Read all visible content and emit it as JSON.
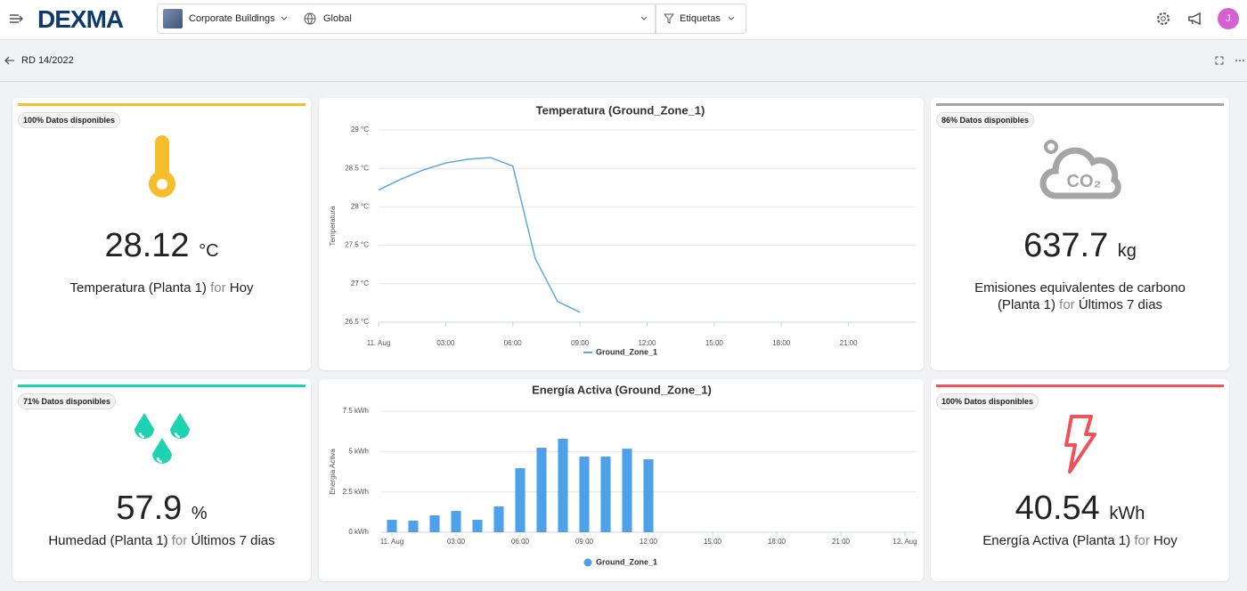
{
  "header": {
    "logo": "DEXMA",
    "building": "Corporate Buildings",
    "location": "Global",
    "tags": "Etiquetas",
    "avatar": "J"
  },
  "breadcrumb": {
    "title": "RD 14/2022"
  },
  "widgets": [
    {
      "availability": "100% Datos disponibles",
      "value": 28.12,
      "unit": "°C",
      "label": "Temperatura (Planta 1)",
      "for": "for",
      "period": "Hoy",
      "color": "#f7bd2b"
    },
    {
      "availability": "86% Datos disponibles",
      "value": 637.7,
      "unit": "kg",
      "label": "Emisiones equivalentes de carbono (Planta 1)",
      "for": "for",
      "period": "Últimos 7 dias",
      "color": "#a5a5a5",
      "icon_text": "CO₂"
    },
    {
      "availability": "71% Datos disponibles",
      "value": 57.9,
      "unit": "%",
      "label": "Humedad (Planta 1)",
      "for": "for",
      "period": "Últimos 7 dias",
      "color": "#1dd3b0"
    },
    {
      "availability": "100% Datos disponibles",
      "value": 40.54,
      "unit": "kWh",
      "label": "Energía Activa (Planta 1)",
      "for": "for",
      "period": "Hoy",
      "color": "#f0525a"
    }
  ],
  "chart_data": [
    {
      "type": "line",
      "title": "Temperatura (Ground_Zone_1)",
      "y_label": "Temperatura",
      "x": [
        0,
        1,
        2,
        3,
        4,
        5,
        6,
        7,
        8,
        9
      ],
      "series": [
        {
          "name": "Ground_Zone_1",
          "color": "#5aa9e6",
          "values": [
            28.22,
            28.36,
            28.48,
            28.57,
            28.62,
            28.64,
            28.53,
            27.33,
            26.77,
            26.63
          ]
        }
      ],
      "xlim": [
        0,
        24
      ],
      "xticks": [
        {
          "value": 0,
          "label": "11. Aug"
        },
        {
          "value": 3,
          "label": "03:00"
        },
        {
          "value": 6,
          "label": "06:00"
        },
        {
          "value": 9,
          "label": "09:00"
        },
        {
          "value": 12,
          "label": "12:00"
        },
        {
          "value": 15,
          "label": "15:00"
        },
        {
          "value": 18,
          "label": "18:00"
        },
        {
          "value": 21,
          "label": "21:00"
        }
      ],
      "ylim": [
        26.5,
        29
      ],
      "yticks": [
        {
          "value": 26.5,
          "label": "26.5 °C"
        },
        {
          "value": 27,
          "label": "27 °C"
        },
        {
          "value": 27.5,
          "label": "27.5 °C"
        },
        {
          "value": 28,
          "label": "28 °C"
        },
        {
          "value": 28.5,
          "label": "28.5 °C"
        },
        {
          "value": 29,
          "label": "29 °C"
        }
      ],
      "grid": true
    },
    {
      "type": "bar",
      "title": "Energía Activa (Ground_Zone_1)",
      "y_label": "Energía Activa",
      "x": [
        0,
        1,
        2,
        3,
        4,
        5,
        6,
        7,
        8,
        9,
        10,
        11,
        12
      ],
      "series": [
        {
          "name": "Ground_Zone_1",
          "color": "#4ea1e8",
          "values": [
            0.77,
            0.72,
            1.05,
            1.32,
            0.77,
            1.6,
            3.97,
            5.24,
            5.79,
            4.69,
            4.69,
            5.18,
            4.52
          ]
        }
      ],
      "xlim": [
        -0.5,
        24.5
      ],
      "xticks": [
        {
          "value": 0,
          "label": "11. Aug"
        },
        {
          "value": 3,
          "label": "03:00"
        },
        {
          "value": 6,
          "label": "06:00"
        },
        {
          "value": 9,
          "label": "09:00"
        },
        {
          "value": 12,
          "label": "12:00"
        },
        {
          "value": 15,
          "label": "15:00"
        },
        {
          "value": 18,
          "label": "18:00"
        },
        {
          "value": 21,
          "label": "21:00"
        },
        {
          "value": 24,
          "label": "12. Aug"
        }
      ],
      "ylim": [
        0,
        7.5
      ],
      "yticks": [
        {
          "value": 0,
          "label": "0 kWh"
        },
        {
          "value": 2.5,
          "label": "2.5 kWh"
        },
        {
          "value": 5,
          "label": "5 kWh"
        },
        {
          "value": 7.5,
          "label": "7.5 kWh"
        }
      ],
      "grid": true
    }
  ]
}
